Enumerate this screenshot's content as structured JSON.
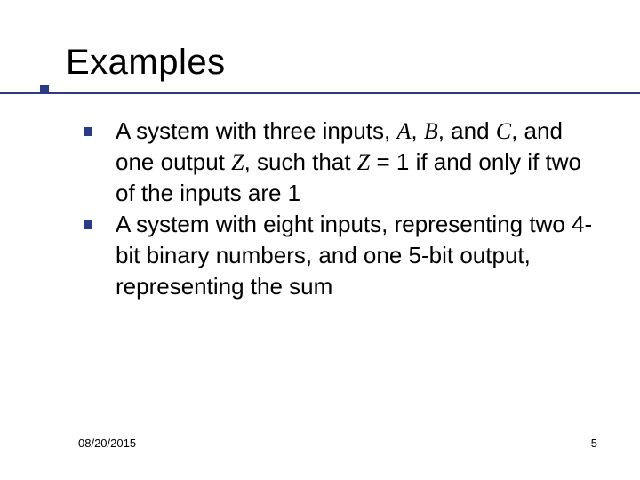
{
  "title": "Examples",
  "title_color": "#000000",
  "title_fontsize": 40,
  "underline_color": "#2b3a87",
  "bullet_color": "#2b3a87",
  "body_fontsize": 26,
  "body_color": "#000000",
  "background_color": "#ffffff",
  "items": [
    {
      "segments": [
        {
          "text": "A system with three inputs, ",
          "italic": false
        },
        {
          "text": "A",
          "italic": true
        },
        {
          "text": ", ",
          "italic": false
        },
        {
          "text": "B",
          "italic": true
        },
        {
          "text": ", and ",
          "italic": false
        },
        {
          "text": "C",
          "italic": true
        },
        {
          "text": ", and one output ",
          "italic": false
        },
        {
          "text": "Z",
          "italic": true
        },
        {
          "text": ", such that ",
          "italic": false
        },
        {
          "text": "Z",
          "italic": true
        },
        {
          "text": " = 1 if and only if two of the inputs are 1",
          "italic": false
        }
      ]
    },
    {
      "segments": [
        {
          "text": "A system with eight inputs, representing two 4-bit binary numbers, and one 5-bit output, representing the sum",
          "italic": false
        }
      ]
    }
  ],
  "footer": {
    "date": "08/20/2015",
    "page": "5"
  }
}
